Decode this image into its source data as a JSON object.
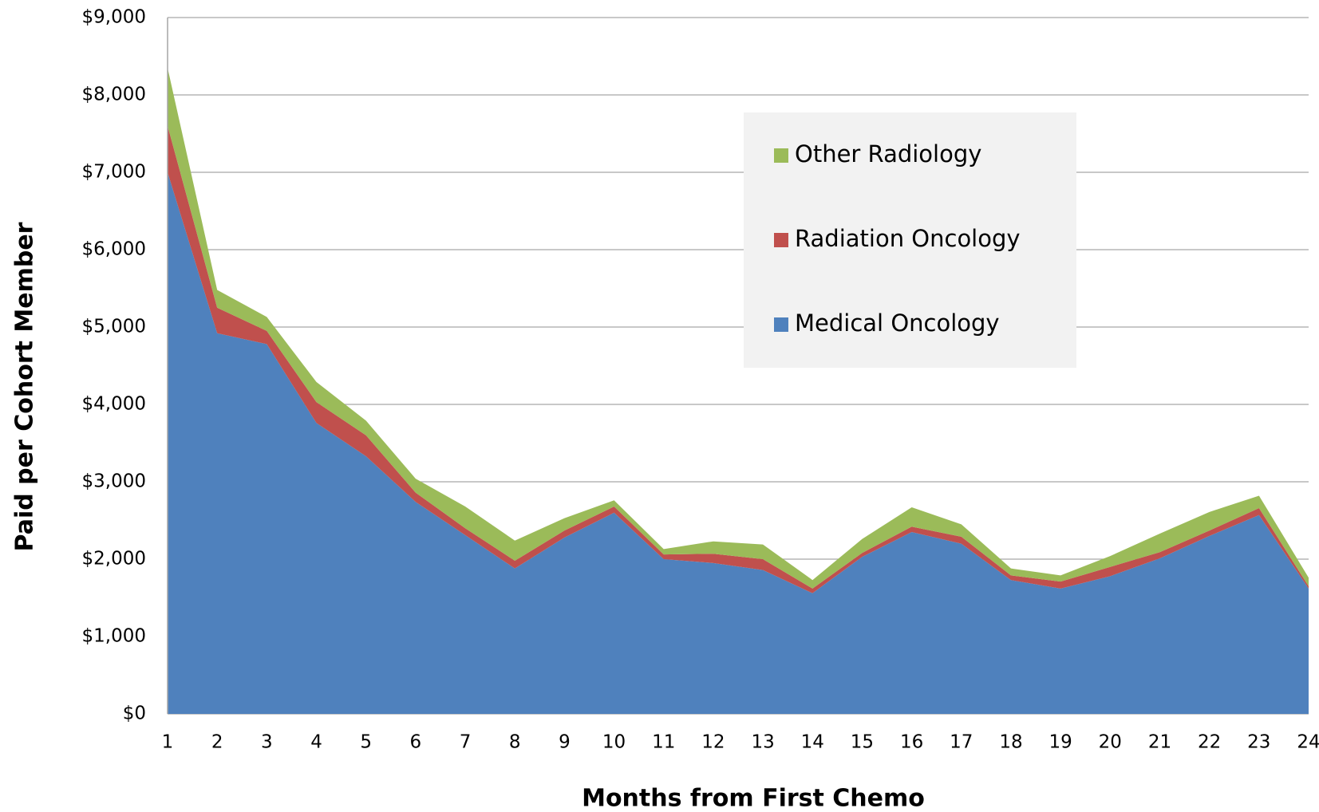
{
  "chart_data": {
    "type": "stacked_area",
    "xlabel": "Months from First Chemo",
    "ylabel": "Paid per Cohort Member",
    "x": [
      1,
      2,
      3,
      4,
      5,
      6,
      7,
      8,
      9,
      10,
      11,
      12,
      13,
      14,
      15,
      16,
      17,
      18,
      19,
      20,
      21,
      22,
      23,
      24
    ],
    "xlim": [
      1,
      24
    ],
    "xticks": [
      1,
      2,
      3,
      4,
      5,
      6,
      7,
      8,
      9,
      10,
      11,
      12,
      13,
      14,
      15,
      16,
      17,
      18,
      19,
      20,
      21,
      22,
      23,
      24
    ],
    "ylim": [
      0,
      9000
    ],
    "yticks": [
      {
        "value": 0,
        "label": "$0"
      },
      {
        "value": 1000,
        "label": "$1,000"
      },
      {
        "value": 2000,
        "label": "$2,000"
      },
      {
        "value": 3000,
        "label": "$3,000"
      },
      {
        "value": 4000,
        "label": "$4,000"
      },
      {
        "value": 5000,
        "label": "$5,000"
      },
      {
        "value": 6000,
        "label": "$6,000"
      },
      {
        "value": 7000,
        "label": "$7,000"
      },
      {
        "value": 8000,
        "label": "$8,000"
      },
      {
        "value": 9000,
        "label": "$9,000"
      }
    ],
    "grid": true,
    "legend": "upper right",
    "series": [
      {
        "name": "Medical Oncology",
        "color": "#4f81bd",
        "values": [
          7000,
          4920,
          4780,
          3760,
          3330,
          2740,
          2310,
          1880,
          2280,
          2600,
          2000,
          1950,
          1860,
          1560,
          2030,
          2350,
          2200,
          1730,
          1620,
          1780,
          2010,
          2300,
          2570,
          1620
        ]
      },
      {
        "name": "Radiation Oncology",
        "color": "#c0504d",
        "values": [
          600,
          330,
          170,
          270,
          270,
          120,
          90,
          100,
          90,
          80,
          60,
          120,
          140,
          60,
          50,
          70,
          90,
          60,
          90,
          120,
          80,
          70,
          90,
          30
        ]
      },
      {
        "name": "Other Radiology",
        "color": "#9bbb59",
        "values": [
          750,
          230,
          180,
          260,
          190,
          180,
          280,
          260,
          160,
          80,
          70,
          160,
          190,
          110,
          180,
          250,
          160,
          90,
          80,
          140,
          240,
          240,
          160,
          110
        ]
      }
    ]
  }
}
